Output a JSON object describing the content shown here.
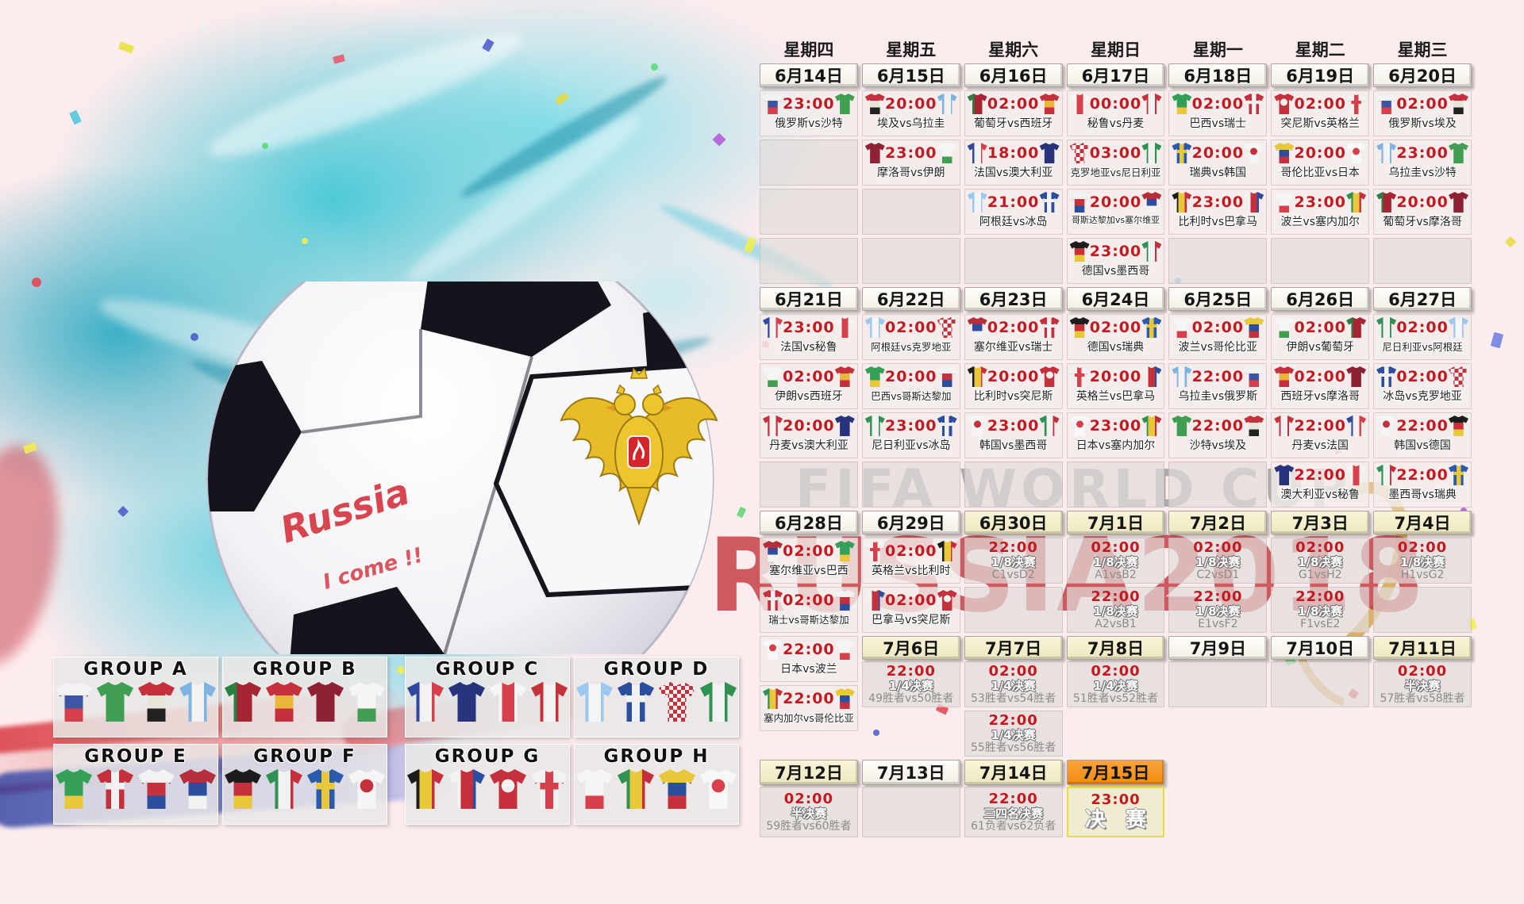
{
  "watermarks": {
    "line1": "FIFA WORLD CUP",
    "line2": "RUSSIA2018"
  },
  "ball": {
    "script1": "Russia",
    "script2": "I come !!"
  },
  "teams": {
    "russia": {
      "name": "俄罗斯",
      "pattern": "h",
      "colors": [
        "#f2f2f2",
        "#3c55a5",
        "#d6404a"
      ]
    },
    "saudi": {
      "name": "沙特",
      "pattern": "solid",
      "colors": [
        "#3f9e52"
      ]
    },
    "egypt": {
      "name": "埃及",
      "pattern": "h",
      "colors": [
        "#c4313c",
        "#e8e4da",
        "#222222"
      ]
    },
    "uruguay": {
      "name": "乌拉圭",
      "pattern": "v",
      "colors": [
        "#7fb4e0",
        "#f2f2f2",
        "#7fb4e0"
      ]
    },
    "portugal": {
      "name": "葡萄牙",
      "pattern": "v",
      "colors": [
        "#2c7f42",
        "#a62532",
        "#a62532"
      ]
    },
    "spain": {
      "name": "西班牙",
      "pattern": "h",
      "colors": [
        "#c4313c",
        "#e9b73a",
        "#c4313c"
      ]
    },
    "morocco": {
      "name": "摩洛哥",
      "pattern": "solid",
      "colors": [
        "#8e2133"
      ]
    },
    "iran": {
      "name": "伊朗",
      "pattern": "h",
      "colors": [
        "#f5f5f5",
        "#f5f5f5",
        "#3f9e52"
      ]
    },
    "france": {
      "name": "法国",
      "pattern": "v",
      "colors": [
        "#32479e",
        "#f2f2f2",
        "#d6404a"
      ]
    },
    "australia": {
      "name": "澳大利亚",
      "pattern": "solid",
      "colors": [
        "#28337e"
      ]
    },
    "peru": {
      "name": "秘鲁",
      "pattern": "v",
      "colors": [
        "#f5f5f5",
        "#d6404a",
        "#f5f5f5"
      ]
    },
    "denmark": {
      "name": "丹麦",
      "pattern": "v",
      "colors": [
        "#c4313c",
        "#f2f2f2",
        "#c4313c"
      ]
    },
    "argentina": {
      "name": "阿根廷",
      "pattern": "v",
      "colors": [
        "#9cc7ee",
        "#f5f5f5",
        "#9cc7ee"
      ]
    },
    "iceland": {
      "name": "冰岛",
      "pattern": "cross",
      "colors": [
        "#2b4f9e",
        "#f2f2f2"
      ]
    },
    "croatia": {
      "name": "克罗地亚",
      "pattern": "checker",
      "colors": [
        "#c4313c",
        "#f2f2f2"
      ]
    },
    "nigeria": {
      "name": "尼日利亚",
      "pattern": "v",
      "colors": [
        "#2f9152",
        "#f2f2f2",
        "#2f9152"
      ]
    },
    "brazil": {
      "name": "巴西",
      "pattern": "h",
      "colors": [
        "#34a057",
        "#34a057",
        "#e9c73a"
      ]
    },
    "switzerland": {
      "name": "瑞士",
      "pattern": "cross",
      "colors": [
        "#c4313c",
        "#f2f2f2"
      ]
    },
    "costarica": {
      "name": "哥斯达黎加",
      "pattern": "h",
      "colors": [
        "#f2f2f2",
        "#c4313c",
        "#2b4f9e"
      ]
    },
    "serbia": {
      "name": "塞尔维亚",
      "pattern": "h",
      "colors": [
        "#b52f3a",
        "#2b4f9e",
        "#f2f2f2"
      ]
    },
    "germany": {
      "name": "德国",
      "pattern": "h",
      "colors": [
        "#1c1c1c",
        "#c4313c",
        "#e9c73a"
      ]
    },
    "mexico": {
      "name": "墨西哥",
      "pattern": "v",
      "colors": [
        "#2f9152",
        "#f2f2f2",
        "#c4313c"
      ]
    },
    "sweden": {
      "name": "瑞典",
      "pattern": "cross",
      "colors": [
        "#2b5aad",
        "#e9c73a"
      ]
    },
    "korea": {
      "name": "韩国",
      "pattern": "dot",
      "colors": [
        "#f5f5f5",
        "#c4313c"
      ]
    },
    "belgium": {
      "name": "比利时",
      "pattern": "v",
      "colors": [
        "#1c1c1c",
        "#e9c73a",
        "#c4313c"
      ]
    },
    "panama": {
      "name": "巴拿马",
      "pattern": "v",
      "colors": [
        "#f2f2f2",
        "#c4313c",
        "#2b4f9e"
      ]
    },
    "tunisia": {
      "name": "突尼斯",
      "pattern": "dot",
      "colors": [
        "#c4313c",
        "#f2f2f2"
      ]
    },
    "england": {
      "name": "英格兰",
      "pattern": "cross",
      "colors": [
        "#f2f2f2",
        "#d6404a"
      ]
    },
    "poland": {
      "name": "波兰",
      "pattern": "h",
      "colors": [
        "#f5f5f5",
        "#f5f5f5",
        "#d6404a"
      ]
    },
    "senegal": {
      "name": "塞内加尔",
      "pattern": "v",
      "colors": [
        "#2f9152",
        "#e9c73a",
        "#c4313c"
      ]
    },
    "colombia": {
      "name": "哥伦比亚",
      "pattern": "h",
      "colors": [
        "#e9c73a",
        "#2b4f9e",
        "#c4313c"
      ]
    },
    "japan": {
      "name": "日本",
      "pattern": "dot",
      "colors": [
        "#f8f8f8",
        "#d6404a"
      ]
    }
  },
  "schedule": {
    "weekdays": [
      "星期四",
      "星期五",
      "星期六",
      "星期日",
      "星期一",
      "星期二",
      "星期三"
    ],
    "week1": {
      "dates": [
        {
          "label": "6月14日",
          "style": "w"
        },
        {
          "label": "6月15日",
          "style": "w"
        },
        {
          "label": "6月16日",
          "style": "w"
        },
        {
          "label": "6月17日",
          "style": "w"
        },
        {
          "label": "6月18日",
          "style": "w"
        },
        {
          "label": "6月19日",
          "style": "w"
        },
        {
          "label": "6月20日",
          "style": "w"
        }
      ],
      "rows": [
        [
          {
            "t": "m",
            "time": "23:00",
            "h": "russia",
            "a": "saudi",
            "label": "俄罗斯vs沙特"
          },
          {
            "t": "m",
            "time": "20:00",
            "h": "egypt",
            "a": "uruguay",
            "label": "埃及vs乌拉圭"
          },
          {
            "t": "m",
            "time": "02:00",
            "h": "portugal",
            "a": "spain",
            "label": "葡萄牙vs西班牙"
          },
          {
            "t": "m",
            "time": "00:00",
            "h": "peru",
            "a": "denmark",
            "label": "秘鲁vs丹麦"
          },
          {
            "t": "m",
            "time": "02:00",
            "h": "brazil",
            "a": "switzerland",
            "label": "巴西vs瑞士"
          },
          {
            "t": "m",
            "time": "02:00",
            "h": "tunisia",
            "a": "england",
            "label": "突尼斯vs英格兰"
          },
          {
            "t": "m",
            "time": "02:00",
            "h": "russia",
            "a": "egypt",
            "label": "俄罗斯vs埃及"
          }
        ],
        [
          {
            "t": "e"
          },
          {
            "t": "m",
            "time": "23:00",
            "h": "morocco",
            "a": "iran",
            "label": "摩洛哥vs伊朗"
          },
          {
            "t": "m",
            "time": "18:00",
            "h": "france",
            "a": "australia",
            "label": "法国vs澳大利亚"
          },
          {
            "t": "m",
            "time": "03:00",
            "h": "croatia",
            "a": "nigeria",
            "label": "克罗地亚vs尼日利亚"
          },
          {
            "t": "m",
            "time": "20:00",
            "h": "sweden",
            "a": "korea",
            "label": "瑞典vs韩国"
          },
          {
            "t": "m",
            "time": "20:00",
            "h": "colombia",
            "a": "japan",
            "label": "哥伦比亚vs日本"
          },
          {
            "t": "m",
            "time": "23:00",
            "h": "uruguay",
            "a": "saudi",
            "label": "乌拉圭vs沙特"
          }
        ],
        [
          {
            "t": "e"
          },
          {
            "t": "e"
          },
          {
            "t": "m",
            "time": "21:00",
            "h": "argentina",
            "a": "iceland",
            "label": "阿根廷vs冰岛"
          },
          {
            "t": "m",
            "time": "20:00",
            "h": "costarica",
            "a": "serbia",
            "label": "哥斯达黎加vs塞尔维亚"
          },
          {
            "t": "m",
            "time": "23:00",
            "h": "belgium",
            "a": "panama",
            "label": "比利时vs巴拿马"
          },
          {
            "t": "m",
            "time": "23:00",
            "h": "poland",
            "a": "senegal",
            "label": "波兰vs塞内加尔"
          },
          {
            "t": "m",
            "time": "20:00",
            "h": "portugal",
            "a": "morocco",
            "label": "葡萄牙vs摩洛哥"
          }
        ],
        [
          {
            "t": "e"
          },
          {
            "t": "e"
          },
          {
            "t": "e"
          },
          {
            "t": "m",
            "time": "23:00",
            "h": "germany",
            "a": "mexico",
            "label": "德国vs墨西哥"
          },
          {
            "t": "e"
          },
          {
            "t": "e"
          },
          {
            "t": "e"
          }
        ]
      ]
    },
    "week2": {
      "dates": [
        {
          "label": "6月21日",
          "style": "w"
        },
        {
          "label": "6月22日",
          "style": "w"
        },
        {
          "label": "6月23日",
          "style": "w"
        },
        {
          "label": "6月24日",
          "style": "w"
        },
        {
          "label": "6月25日",
          "style": "w"
        },
        {
          "label": "6月26日",
          "style": "w"
        },
        {
          "label": "6月27日",
          "style": "w"
        }
      ],
      "rows": [
        [
          {
            "t": "m",
            "time": "23:00",
            "h": "france",
            "a": "peru",
            "label": "法国vs秘鲁"
          },
          {
            "t": "m",
            "time": "02:00",
            "h": "argentina",
            "a": "croatia",
            "label": "阿根廷vs克罗地亚"
          },
          {
            "t": "m",
            "time": "02:00",
            "h": "serbia",
            "a": "switzerland",
            "label": "塞尔维亚vs瑞士"
          },
          {
            "t": "m",
            "time": "02:00",
            "h": "germany",
            "a": "sweden",
            "label": "德国vs瑞典"
          },
          {
            "t": "m",
            "time": "02:00",
            "h": "poland",
            "a": "colombia",
            "label": "波兰vs哥伦比亚"
          },
          {
            "t": "m",
            "time": "02:00",
            "h": "iran",
            "a": "portugal",
            "label": "伊朗vs葡萄牙"
          },
          {
            "t": "m",
            "time": "02:00",
            "h": "nigeria",
            "a": "argentina",
            "label": "尼日利亚vs阿根廷"
          }
        ],
        [
          {
            "t": "m",
            "time": "02:00",
            "h": "iran",
            "a": "spain",
            "label": "伊朗vs西班牙"
          },
          {
            "t": "m",
            "time": "20:00",
            "h": "brazil",
            "a": "costarica",
            "label": "巴西vs哥斯达黎加"
          },
          {
            "t": "m",
            "time": "20:00",
            "h": "belgium",
            "a": "tunisia",
            "label": "比利时vs突尼斯"
          },
          {
            "t": "m",
            "time": "20:00",
            "h": "england",
            "a": "panama",
            "label": "英格兰vs巴拿马"
          },
          {
            "t": "m",
            "time": "22:00",
            "h": "uruguay",
            "a": "russia",
            "label": "乌拉圭vs俄罗斯"
          },
          {
            "t": "m",
            "time": "02:00",
            "h": "spain",
            "a": "morocco",
            "label": "西班牙vs摩洛哥"
          },
          {
            "t": "m",
            "time": "02:00",
            "h": "iceland",
            "a": "croatia",
            "label": "冰岛vs克罗地亚"
          }
        ],
        [
          {
            "t": "m",
            "time": "20:00",
            "h": "denmark",
            "a": "australia",
            "label": "丹麦vs澳大利亚"
          },
          {
            "t": "m",
            "time": "23:00",
            "h": "nigeria",
            "a": "iceland",
            "label": "尼日利亚vs冰岛"
          },
          {
            "t": "m",
            "time": "23:00",
            "h": "korea",
            "a": "mexico",
            "label": "韩国vs墨西哥"
          },
          {
            "t": "m",
            "time": "23:00",
            "h": "japan",
            "a": "senegal",
            "label": "日本vs塞内加尔"
          },
          {
            "t": "m",
            "time": "22:00",
            "h": "saudi",
            "a": "egypt",
            "label": "沙特vs埃及"
          },
          {
            "t": "m",
            "time": "22:00",
            "h": "denmark",
            "a": "france",
            "label": "丹麦vs法国"
          },
          {
            "t": "m",
            "time": "22:00",
            "h": "korea",
            "a": "germany",
            "label": "韩国vs德国"
          }
        ],
        [
          {
            "t": "e"
          },
          {
            "t": "e"
          },
          {
            "t": "e"
          },
          {
            "t": "e"
          },
          {
            "t": "e"
          },
          {
            "t": "m",
            "time": "22:00",
            "h": "australia",
            "a": "peru",
            "label": "澳大利亚vs秘鲁"
          },
          {
            "t": "m",
            "time": "22:00",
            "h": "mexico",
            "a": "sweden",
            "label": "墨西哥vs瑞典"
          }
        ]
      ]
    },
    "week3": {
      "dates": [
        {
          "label": "6月28日",
          "style": "w"
        },
        {
          "label": "6月29日",
          "style": "w"
        },
        {
          "label": "6月30日",
          "style": "c"
        },
        {
          "label": "7月1日",
          "style": "c"
        },
        {
          "label": "7月2日",
          "style": "c"
        },
        {
          "label": "7月3日",
          "style": "c"
        },
        {
          "label": "7月4日",
          "style": "c"
        }
      ],
      "rows": [
        [
          {
            "t": "m",
            "time": "02:00",
            "h": "serbia",
            "a": "brazil",
            "label": "塞尔维亚vs巴西"
          },
          {
            "t": "m",
            "time": "02:00",
            "h": "england",
            "a": "belgium",
            "label": "英格兰vs比利时"
          },
          {
            "t": "k",
            "time": "22:00",
            "stage": "1/8决赛",
            "detail": "C1vsD2"
          },
          {
            "t": "k",
            "time": "02:00",
            "stage": "1/8决赛",
            "detail": "A1vsB2"
          },
          {
            "t": "k",
            "time": "02:00",
            "stage": "1/8决赛",
            "detail": "C2vsD1"
          },
          {
            "t": "k",
            "time": "02:00",
            "stage": "1/8决赛",
            "detail": "G1vsH2"
          },
          {
            "t": "k",
            "time": "02:00",
            "stage": "1/8决赛",
            "detail": "H1vsG2"
          }
        ],
        [
          {
            "t": "m",
            "time": "02:00",
            "h": "switzerland",
            "a": "costarica",
            "label": "瑞士vs哥斯达黎加"
          },
          {
            "t": "m",
            "time": "02:00",
            "h": "panama",
            "a": "tunisia",
            "label": "巴拿马vs突尼斯"
          },
          {
            "t": "e"
          },
          {
            "t": "k",
            "time": "22:00",
            "stage": "1/8决赛",
            "detail": "A2vsB1"
          },
          {
            "t": "k",
            "time": "22:00",
            "stage": "1/8决赛",
            "detail": "E1vsF2"
          },
          {
            "t": "k",
            "time": "22:00",
            "stage": "1/8决赛",
            "detail": "F1vsE2"
          },
          {
            "t": "e"
          }
        ]
      ]
    },
    "week4": {
      "col1": [
        {
          "t": "m",
          "time": "22:00",
          "h": "japan",
          "a": "poland",
          "label": "日本vs波兰"
        },
        {
          "t": "m",
          "time": "22:00",
          "h": "senegal",
          "a": "colombia",
          "label": "塞内加尔vs哥伦比亚"
        }
      ],
      "dates": [
        {
          "label": "7月6日",
          "style": "c"
        },
        {
          "label": "7月7日",
          "style": "c"
        },
        {
          "label": "7月8日",
          "style": "c"
        },
        {
          "label": "7月9日",
          "style": "w"
        },
        {
          "label": "7月10日",
          "style": "w"
        },
        {
          "label": "7月11日",
          "style": "c"
        }
      ],
      "rows": [
        [
          {
            "t": "k",
            "time": "22:00",
            "stage": "1/4决赛",
            "detail": "49胜者vs50胜者"
          },
          {
            "t": "k",
            "time": "02:00",
            "stage": "1/4决赛",
            "detail": "53胜者vs54胜者"
          },
          {
            "t": "k",
            "time": "02:00",
            "stage": "1/4决赛",
            "detail": "51胜者vs52胜者"
          },
          {
            "t": "e"
          },
          {
            "t": "e"
          },
          {
            "t": "k",
            "time": "02:00",
            "stage": "半决赛",
            "detail": "57胜者vs58胜者"
          }
        ],
        [
          {
            "t": "n"
          },
          {
            "t": "k",
            "time": "22:00",
            "stage": "1/4决赛",
            "detail": "55胜者vs56胜者"
          },
          {
            "t": "n"
          },
          {
            "t": "n"
          },
          {
            "t": "n"
          },
          {
            "t": "n"
          }
        ]
      ]
    },
    "week5": {
      "dates": [
        {
          "label": "7月12日",
          "style": "c"
        },
        {
          "label": "7月13日",
          "style": "w"
        },
        {
          "label": "7月14日",
          "style": "c"
        },
        {
          "label": "7月15日",
          "style": "o"
        }
      ],
      "rows": [
        [
          {
            "t": "k",
            "time": "02:00",
            "stage": "半决赛",
            "detail": "59胜者vs60胜者"
          },
          {
            "t": "e"
          },
          {
            "t": "k",
            "time": "22:00",
            "stage": "三四名决赛",
            "detail": "61负者vs62负者"
          },
          {
            "t": "f",
            "time": "23:00",
            "stage": "决 赛"
          }
        ]
      ]
    }
  },
  "groups": [
    {
      "label": "GROUP A",
      "teams": [
        "russia",
        "saudi",
        "egypt",
        "uruguay"
      ]
    },
    {
      "label": "GROUP B",
      "teams": [
        "portugal",
        "spain",
        "morocco",
        "iran"
      ]
    },
    {
      "label": "GROUP C",
      "teams": [
        "france",
        "australia",
        "peru",
        "denmark"
      ]
    },
    {
      "label": "GROUP D",
      "teams": [
        "argentina",
        "iceland",
        "croatia",
        "nigeria"
      ]
    },
    {
      "label": "GROUP E",
      "teams": [
        "brazil",
        "switzerland",
        "costarica",
        "serbia"
      ]
    },
    {
      "label": "GROUP F",
      "teams": [
        "germany",
        "mexico",
        "sweden",
        "korea"
      ]
    },
    {
      "label": "GROUP G",
      "teams": [
        "belgium",
        "panama",
        "tunisia",
        "england"
      ]
    },
    {
      "label": "GROUP H",
      "teams": [
        "poland",
        "senegal",
        "colombia",
        "japan"
      ]
    }
  ]
}
